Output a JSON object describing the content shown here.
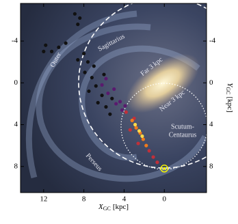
{
  "chart_data": {
    "type": "scatter",
    "xlabel": {
      "symbol": "X",
      "subscript": "GC",
      "unit": "[kpc]"
    },
    "ylabel": {
      "symbol": "Y",
      "subscript": "GC",
      "unit": "[kpc]"
    },
    "xlim": [
      14.3,
      -4.2
    ],
    "ylim": [
      -7.6,
      10.5
    ],
    "xticks": [
      12,
      8,
      4,
      0
    ],
    "yticks": [
      -4,
      0,
      4,
      8
    ],
    "annotations": [
      "Outer",
      "Sagittarius",
      "Far 3 kpc",
      "Near 3 kpc",
      "Scutum-",
      "Centaurus",
      "Perseus"
    ],
    "series": [
      {
        "color": "#111111",
        "x": [
          8.9,
          8.4,
          8.6,
          11.8,
          11.2,
          10.5,
          12.0,
          9.8,
          8.0,
          7.6,
          7.9,
          7.2,
          6.8,
          7.5,
          6.2,
          6.6,
          5.8,
          5.2,
          6.0,
          5.4,
          8.6,
          7.0
        ],
        "y": [
          -6.6,
          -6.2,
          -5.6,
          -3.6,
          -3.0,
          -3.4,
          -3.0,
          -3.8,
          -2.8,
          -2.0,
          -1.0,
          -0.5,
          0.3,
          0.8,
          1.2,
          1.9,
          2.3,
          1.5,
          -0.8,
          3.0,
          -2.2,
          -1.6
        ]
      },
      {
        "color": "#5a1a6e",
        "x": [
          6.2,
          5.6,
          5.0,
          4.8,
          5.8,
          4.4,
          4.2,
          3.9
        ],
        "y": [
          0.2,
          1.0,
          0.6,
          2.0,
          -0.4,
          1.8,
          2.6,
          2.2
        ]
      },
      {
        "color": "#c0303a",
        "x": [
          3.8,
          3.4,
          3.0,
          2.6,
          1.5,
          1.1,
          0.7
        ],
        "y": [
          2.8,
          4.5,
          3.4,
          5.8,
          6.5,
          7.1,
          7.6
        ]
      },
      {
        "color": "#f07a1c",
        "x": [
          3.2,
          2.8,
          2.4,
          2.1,
          1.8
        ],
        "y": [
          3.6,
          4.3,
          4.8,
          5.4,
          6.0
        ]
      },
      {
        "color": "#fbd94a",
        "x": [
          2.9,
          2.5,
          2.2
        ],
        "y": [
          4.0,
          4.6,
          5.1
        ]
      }
    ],
    "sun": {
      "x": 0,
      "y": 8.2,
      "color": "#f5f500"
    }
  }
}
